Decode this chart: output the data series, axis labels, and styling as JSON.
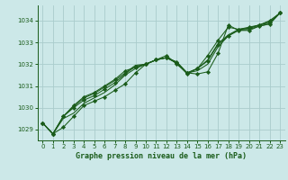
{
  "bg_color": "#cce8e8",
  "grid_color": "#aacccc",
  "line_color": "#1a5c1a",
  "marker_color": "#1a5c1a",
  "title": "Graphe pression niveau de la mer (hPa)",
  "ylim": [
    1028.5,
    1034.7
  ],
  "xlim": [
    -0.5,
    23.5
  ],
  "yticks": [
    1029,
    1030,
    1031,
    1032,
    1033,
    1034
  ],
  "xticks": [
    0,
    1,
    2,
    3,
    4,
    5,
    6,
    7,
    8,
    9,
    10,
    11,
    12,
    13,
    14,
    15,
    16,
    17,
    18,
    19,
    20,
    21,
    22,
    23
  ],
  "series": [
    [
      1029.3,
      1028.8,
      1029.1,
      1029.6,
      1030.1,
      1030.3,
      1030.5,
      1030.8,
      1031.1,
      1031.6,
      1032.0,
      1032.2,
      1032.4,
      1032.0,
      1031.6,
      1031.55,
      1031.65,
      1032.5,
      1033.8,
      1033.55,
      1033.55,
      1033.75,
      1033.85,
      1034.35
    ],
    [
      1029.3,
      1028.8,
      1029.5,
      1029.75,
      1030.2,
      1030.45,
      1030.7,
      1031.05,
      1031.5,
      1031.8,
      1032.0,
      1032.2,
      1032.3,
      1032.1,
      1031.6,
      1031.7,
      1032.0,
      1032.8,
      1033.3,
      1033.55,
      1033.6,
      1033.75,
      1033.85,
      1034.35
    ],
    [
      1029.3,
      1028.8,
      1029.6,
      1030.0,
      1030.35,
      1030.55,
      1030.85,
      1031.15,
      1031.55,
      1031.9,
      1032.0,
      1032.2,
      1032.3,
      1032.1,
      1031.6,
      1031.8,
      1032.15,
      1032.9,
      1033.3,
      1033.6,
      1033.65,
      1033.8,
      1033.9,
      1034.35
    ],
    [
      1029.3,
      1028.8,
      1029.6,
      1030.05,
      1030.45,
      1030.65,
      1030.95,
      1031.25,
      1031.6,
      1031.95,
      1032.0,
      1032.2,
      1032.3,
      1032.05,
      1031.6,
      1031.8,
      1032.2,
      1032.95,
      1033.35,
      1033.6,
      1033.65,
      1033.8,
      1033.95,
      1034.35
    ],
    [
      1029.3,
      1028.8,
      1029.6,
      1030.1,
      1030.5,
      1030.7,
      1031.0,
      1031.3,
      1031.7,
      1031.85,
      1032.0,
      1032.2,
      1032.3,
      1032.05,
      1031.55,
      1031.8,
      1032.4,
      1033.1,
      1033.7,
      1033.6,
      1033.7,
      1033.8,
      1034.0,
      1034.35
    ]
  ],
  "marker_series": [
    0,
    2,
    4
  ],
  "marker": "D",
  "markersize": 2.2,
  "linewidth": 0.75,
  "tick_fontsize": 5.0,
  "title_fontsize": 6.0
}
